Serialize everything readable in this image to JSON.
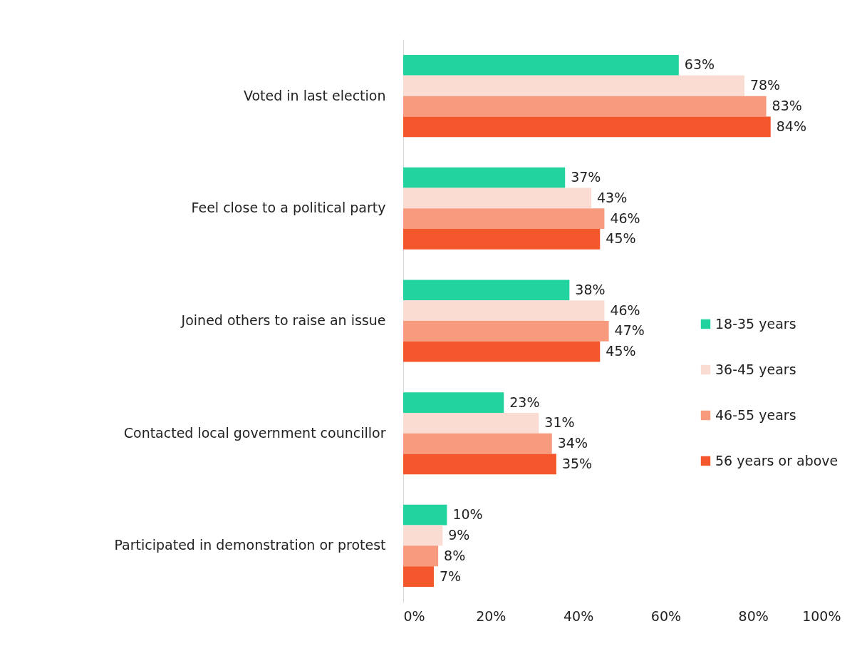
{
  "chart_data": {
    "type": "bar",
    "orientation": "horizontal",
    "categories": [
      "Voted in last election",
      "Feel close to a political party",
      "Joined others to raise an issue",
      "Contacted local government councillor",
      "Participated in demonstration or protest"
    ],
    "series": [
      {
        "name": "18-35 years",
        "color": "#22d3a0",
        "values": [
          63,
          37,
          38,
          23,
          10
        ],
        "value_labels": [
          "63%",
          "37%",
          "38%",
          "23%",
          "10%"
        ]
      },
      {
        "name": "36-45 years",
        "color": "#fadcd2",
        "values": [
          78,
          43,
          46,
          31,
          9
        ],
        "value_labels": [
          "78%",
          "43%",
          "46%",
          "31%",
          "9%"
        ]
      },
      {
        "name": "46-55 years",
        "color": "#f79a7e",
        "values": [
          83,
          46,
          47,
          34,
          8
        ],
        "value_labels": [
          "83%",
          "46%",
          "47%",
          "34%",
          "8%"
        ]
      },
      {
        "name": "56 years or above",
        "color": "#f4572c",
        "values": [
          84,
          45,
          45,
          35,
          7
        ],
        "value_labels": [
          "84%",
          "45%",
          "45%",
          "35%",
          "7%"
        ]
      }
    ],
    "xlim": [
      0,
      100
    ],
    "xticks": [
      {
        "value": 0,
        "label": "0%"
      },
      {
        "value": 20,
        "label": "20%"
      },
      {
        "value": 40,
        "label": "40%"
      },
      {
        "value": 60,
        "label": "60%"
      },
      {
        "value": 80,
        "label": "80%"
      },
      {
        "value": 100,
        "label": "100%"
      }
    ],
    "grid": false,
    "legend": "right"
  }
}
